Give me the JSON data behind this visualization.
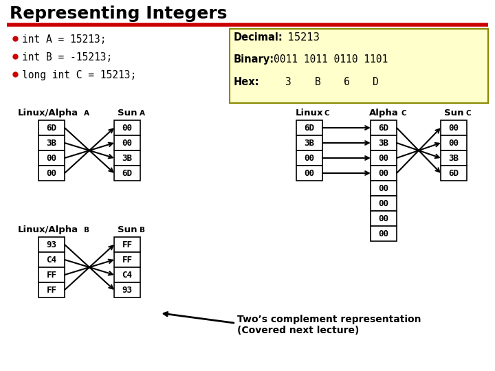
{
  "title": "Representing Integers",
  "bg_color": "#ffffff",
  "title_color": "#000000",
  "red_line_color": "#cc0000",
  "bullet_color": "#cc0000",
  "bullets": [
    "int A = 15213;",
    "int B = -15213;",
    "long int C = 15213;"
  ],
  "box_bg": "#ffffcc",
  "box_border": "#888800",
  "decimal_label": "Decimal:",
  "decimal_val": " 15213",
  "binary_label": "Binary:",
  "binary_val": "0011 1011 0110 1101",
  "hex_label": "Hex:",
  "hex_vals": [
    "3",
    "B",
    "6",
    "D"
  ],
  "lta_label1": "Linux/Alpha",
  "lta_sub1": "A",
  "lta_label2": "Sun",
  "lta_sub2": "A",
  "lta_left": [
    "6D",
    "3B",
    "00",
    "00"
  ],
  "lta_right": [
    "00",
    "00",
    "3B",
    "6D"
  ],
  "ltb_label1": "Linux/Alpha",
  "ltb_sub1": "B",
  "ltb_label2": "Sun",
  "ltb_sub2": "B",
  "ltb_left": [
    "93",
    "C4",
    "FF",
    "FF"
  ],
  "ltb_right": [
    "FF",
    "FF",
    "C4",
    "93"
  ],
  "rc_label1": "Linux",
  "rc_sub1": "C",
  "rc_label2": "Alpha",
  "rc_sub2": "C",
  "rc_label3": "Sun",
  "rc_sub3": "C",
  "rc_left": [
    "6D",
    "3B",
    "00",
    "00"
  ],
  "rc_mid": [
    "6D",
    "3B",
    "00",
    "00",
    "00",
    "00",
    "00",
    "00"
  ],
  "rc_right": [
    "00",
    "00",
    "3B",
    "6D"
  ],
  "annotation": "Two’s complement representation\n(Covered next lecture)"
}
